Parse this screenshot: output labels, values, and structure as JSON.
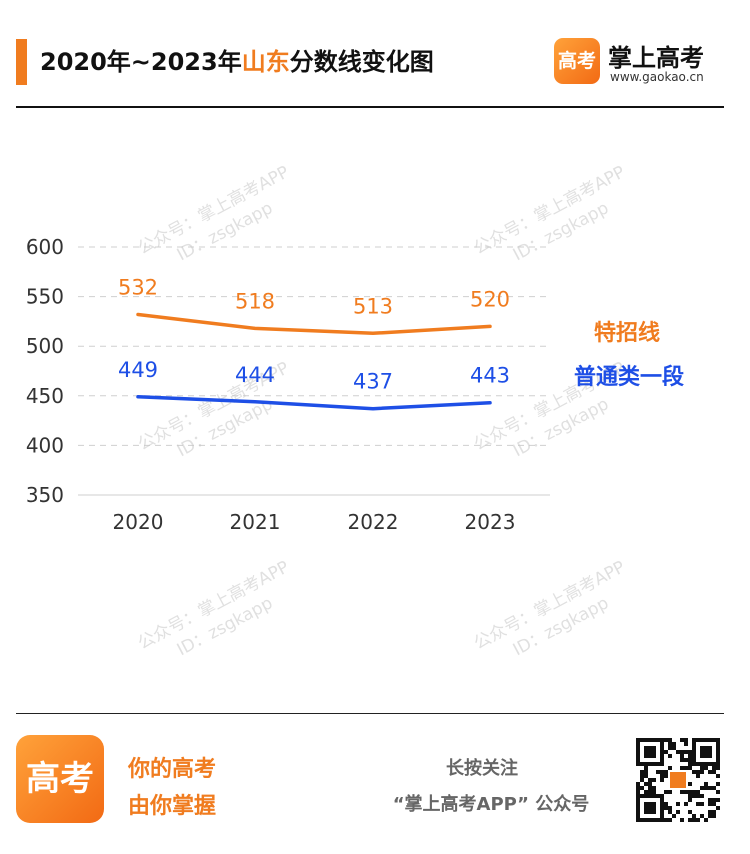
{
  "header": {
    "title_prefix": "2020年~2023年",
    "title_highlight": "山东",
    "title_suffix": "分数线变化图",
    "brand_logo_text": "高考",
    "brand_name": "掌上高考",
    "brand_url": "www.gaokao.cn"
  },
  "watermark": {
    "line1": "公众号：掌上高考APP",
    "line2": "ID：zsgkapp"
  },
  "colors": {
    "accent": "#f07c1f",
    "special": "#f07c1f",
    "general": "#1e4fe6",
    "grid": "#cfcfcf"
  },
  "chart_data": {
    "type": "line",
    "x": [
      "2020",
      "2021",
      "2022",
      "2023"
    ],
    "ylim": [
      350,
      600
    ],
    "yticks": [
      350,
      400,
      450,
      500,
      550,
      600
    ],
    "grid": true,
    "legend_placement": "right",
    "series": [
      {
        "name": "特招线",
        "values": [
          532,
          518,
          513,
          520
        ],
        "color": "#f07c1f"
      },
      {
        "name": "普通类一段",
        "values": [
          449,
          444,
          437,
          443
        ],
        "color": "#1e4fe6"
      }
    ]
  },
  "footer": {
    "logo_text": "高考",
    "slogan_line1": "你的高考",
    "slogan_line2": "由你掌握",
    "follow_line1": "长按关注",
    "follow_line2": "“掌上高考APP” 公众号",
    "qr_icon": "qr-code-icon"
  }
}
